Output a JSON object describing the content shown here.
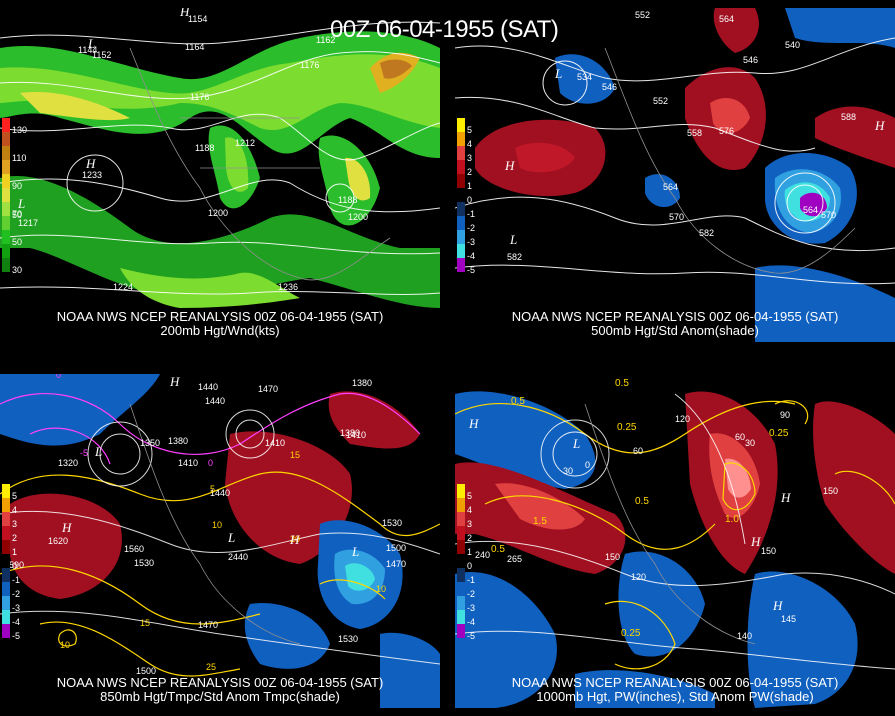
{
  "title": "00Z 06-04-1955 (SAT)",
  "panels": [
    {
      "id": "p1",
      "caption_line1": "NOAA NWS NCEP REANALYSIS 00Z 06-04-1955 (SAT)",
      "caption_line2": "200mb Hgt/Wnd(kts)",
      "legend": [
        {
          "label": "130",
          "color": "#ff2020"
        },
        {
          "label": "",
          "color": "#c05020"
        },
        {
          "label": "110",
          "color": "#c08010"
        },
        {
          "label": "",
          "color": "#e0a020"
        },
        {
          "label": "90",
          "color": "#f0d020"
        },
        {
          "label": "",
          "color": "#e0e040"
        },
        {
          "label": "70",
          "color": "#a0e040"
        },
        {
          "label": "",
          "color": "#60d030"
        },
        {
          "label": "50",
          "color": "#20c020"
        },
        {
          "label": "",
          "color": "#10a010"
        },
        {
          "label": "30",
          "color": "#108010"
        }
      ],
      "labels": [
        "1152",
        "1164",
        "1176",
        "1188",
        "1200",
        "1212",
        "1224",
        "1236",
        "1233",
        "1217",
        "1154",
        "1162",
        "1144",
        "1118"
      ],
      "highs_lows": [
        "H",
        "L",
        "H",
        "L"
      ]
    },
    {
      "id": "p2",
      "caption_line1": "NOAA NWS NCEP REANALYSIS 00Z 06-04-1955 (SAT)",
      "caption_line2": "500mb Hgt/Std Anom(shade)",
      "legend": [
        {
          "label": "5",
          "color": "#ffee00"
        },
        {
          "label": "4",
          "color": "#f0a000"
        },
        {
          "label": "3",
          "color": "#e04040"
        },
        {
          "label": "2",
          "color": "#c01020"
        },
        {
          "label": "1",
          "color": "#900000"
        },
        {
          "label": "0",
          "color": "#000000"
        },
        {
          "label": "-1",
          "color": "#103060"
        },
        {
          "label": "-2",
          "color": "#1060c0"
        },
        {
          "label": "-3",
          "color": "#30a0e0"
        },
        {
          "label": "-4",
          "color": "#40e0e0"
        },
        {
          "label": "-5",
          "color": "#a000c0"
        }
      ],
      "labels": [
        "552",
        "564",
        "546",
        "540",
        "534",
        "528",
        "558",
        "570",
        "576",
        "582",
        "588",
        "592",
        "590",
        "564",
        "539",
        "557"
      ],
      "highs_lows": [
        "H",
        "L",
        "H",
        "L"
      ]
    },
    {
      "id": "p3",
      "caption_line1": "NOAA NWS NCEP REANALYSIS 00Z 06-04-1955 (SAT)",
      "caption_line2": "850mb Hgt/Tmpc/Std Anom Tmpc(shade)",
      "legend": [
        {
          "label": "5",
          "color": "#ffee00"
        },
        {
          "label": "4",
          "color": "#f0a000"
        },
        {
          "label": "3",
          "color": "#e04040"
        },
        {
          "label": "2",
          "color": "#c01020"
        },
        {
          "label": "1",
          "color": "#900000"
        },
        {
          "label": "0",
          "color": "#000000"
        },
        {
          "label": "-1",
          "color": "#103060"
        },
        {
          "label": "-2",
          "color": "#1060c0"
        },
        {
          "label": "-3",
          "color": "#30a0e0"
        },
        {
          "label": "-4",
          "color": "#40e0e0"
        },
        {
          "label": "-5",
          "color": "#a000c0"
        }
      ],
      "labels": [
        "1440",
        "1470",
        "1380",
        "1350",
        "1410",
        "1320",
        "1500",
        "1530",
        "1560",
        "1590",
        "1620",
        "1470",
        "1500",
        "1530",
        "10",
        "15",
        "20",
        "25",
        "-5",
        "0",
        "5"
      ],
      "highs_lows": [
        "H",
        "L",
        "H",
        "L",
        "H"
      ]
    },
    {
      "id": "p4",
      "caption_line1": "NOAA NWS NCEP REANALYSIS 00Z 06-04-1955 (SAT)",
      "caption_line2": "1000mb Hgt, PW(inches), Std Anom PW(shade)",
      "legend": [
        {
          "label": "5",
          "color": "#ffee00"
        },
        {
          "label": "4",
          "color": "#f0a000"
        },
        {
          "label": "3",
          "color": "#e04040"
        },
        {
          "label": "2",
          "color": "#c01020"
        },
        {
          "label": "1",
          "color": "#900000"
        },
        {
          "label": "0",
          "color": "#000000"
        },
        {
          "label": "-1",
          "color": "#103060"
        },
        {
          "label": "-2",
          "color": "#1060c0"
        },
        {
          "label": "-3",
          "color": "#30a0e0"
        },
        {
          "label": "-4",
          "color": "#40e0e0"
        },
        {
          "label": "-5",
          "color": "#a000c0"
        }
      ],
      "labels": [
        "0.25",
        "0.5",
        "1.5",
        "30",
        "60",
        "90",
        "120",
        "150",
        "0",
        "240",
        "265",
        "145",
        "140",
        "0.25",
        "0.5"
      ],
      "highs_lows": [
        "H",
        "L",
        "H",
        "H",
        "H"
      ]
    }
  ]
}
